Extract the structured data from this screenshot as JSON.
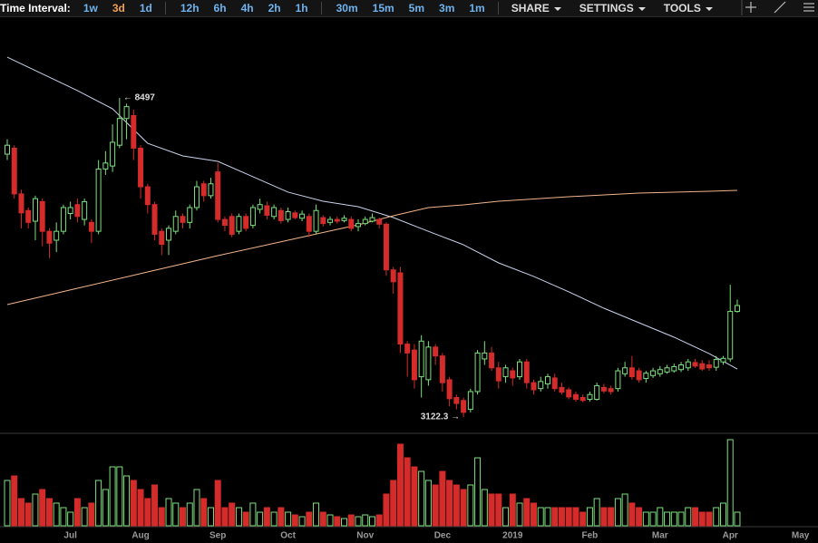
{
  "toolbar": {
    "label": "Time Interval:",
    "interval_groups": [
      [
        "1w",
        "3d",
        "1d"
      ],
      [
        "12h",
        "6h",
        "4h",
        "2h",
        "1h"
      ],
      [
        "30m",
        "15m",
        "5m",
        "3m",
        "1m"
      ]
    ],
    "active": [
      0,
      1
    ],
    "menus": [
      "SHARE",
      "SETTINGS",
      "TOOLS"
    ]
  },
  "chart_data": {
    "type": "candlestick",
    "up_color": "#7ee07e",
    "down_color": "#d42b2b",
    "ylim": [
      2847,
      9841
    ],
    "volume_ylim": [
      0,
      100
    ],
    "categories": [
      null,
      null,
      null,
      null,
      null,
      null,
      null,
      null,
      null,
      "Jul",
      null,
      null,
      null,
      null,
      null,
      null,
      null,
      null,
      null,
      "Aug",
      null,
      null,
      null,
      null,
      null,
      null,
      null,
      null,
      null,
      null,
      "Sep",
      null,
      null,
      null,
      null,
      null,
      null,
      null,
      null,
      null,
      "Oct",
      null,
      null,
      null,
      null,
      null,
      null,
      null,
      null,
      null,
      null,
      "Nov",
      null,
      null,
      null,
      null,
      null,
      null,
      null,
      null,
      null,
      null,
      "Dec",
      null,
      null,
      null,
      null,
      null,
      null,
      null,
      null,
      null,
      "2019",
      null,
      null,
      null,
      null,
      null,
      null,
      null,
      null,
      null,
      null,
      "Feb",
      null,
      null,
      null,
      null,
      null,
      null,
      null,
      null,
      null,
      "Mar",
      null,
      null,
      null,
      null,
      null,
      null,
      null,
      null,
      null,
      "Apr",
      null,
      null,
      null,
      null,
      null,
      null,
      null,
      null,
      null,
      "May"
    ],
    "candles": [
      [
        7550,
        7800,
        7450,
        7700
      ],
      [
        7650,
        7700,
        6800,
        6880
      ],
      [
        6880,
        6950,
        6300,
        6560
      ],
      [
        6600,
        6650,
        6300,
        6400
      ],
      [
        6420,
        6850,
        6100,
        6800
      ],
      [
        6750,
        6800,
        6000,
        6250
      ],
      [
        6250,
        6300,
        5800,
        6050
      ],
      [
        6100,
        6400,
        5900,
        6250
      ],
      [
        6250,
        6700,
        6200,
        6650
      ],
      [
        6550,
        6750,
        6450,
        6650
      ],
      [
        6700,
        6800,
        6400,
        6500
      ],
      [
        6450,
        6800,
        6350,
        6750
      ],
      [
        6400,
        6450,
        6050,
        6250
      ],
      [
        6250,
        7450,
        6200,
        7300
      ],
      [
        7300,
        7600,
        7200,
        7400
      ],
      [
        7350,
        8050,
        7250,
        7750
      ],
      [
        7700,
        8497,
        7650,
        8150
      ],
      [
        8150,
        8400,
        7800,
        8350
      ],
      [
        8200,
        8300,
        7450,
        7650
      ],
      [
        7650,
        7700,
        6800,
        7000
      ],
      [
        7000,
        7050,
        6550,
        6700
      ],
      [
        6700,
        6750,
        6100,
        6200
      ],
      [
        6250,
        6300,
        5850,
        6030
      ],
      [
        6100,
        6350,
        5850,
        6300
      ],
      [
        6250,
        6600,
        6200,
        6500
      ],
      [
        6500,
        6550,
        6300,
        6400
      ],
      [
        6400,
        6700,
        6300,
        6650
      ],
      [
        6650,
        7100,
        6600,
        7000
      ],
      [
        7050,
        7100,
        6750,
        6850
      ],
      [
        6850,
        7150,
        6800,
        7050
      ],
      [
        7250,
        7400,
        6400,
        6450
      ],
      [
        6450,
        6500,
        6250,
        6350
      ],
      [
        6500,
        6550,
        6150,
        6200
      ],
      [
        6250,
        6550,
        6200,
        6500
      ],
      [
        6500,
        6550,
        6250,
        6300
      ],
      [
        6350,
        6700,
        6300,
        6650
      ],
      [
        6620,
        6800,
        6550,
        6700
      ],
      [
        6680,
        6750,
        6450,
        6520
      ],
      [
        6500,
        6700,
        6450,
        6650
      ],
      [
        6600,
        6650,
        6380,
        6430
      ],
      [
        6450,
        6650,
        6400,
        6580
      ],
      [
        6560,
        6600,
        6450,
        6480
      ],
      [
        6470,
        6600,
        6420,
        6540
      ],
      [
        6500,
        6550,
        6150,
        6250
      ],
      [
        6250,
        6700,
        6200,
        6600
      ],
      [
        6480,
        6520,
        6330,
        6380
      ],
      [
        6400,
        6500,
        6350,
        6450
      ],
      [
        6450,
        6500,
        6380,
        6420
      ],
      [
        6430,
        6520,
        6400,
        6470
      ],
      [
        6450,
        6500,
        6250,
        6300
      ],
      [
        6330,
        6450,
        6250,
        6380
      ],
      [
        6380,
        6500,
        6350,
        6450
      ],
      [
        6420,
        6550,
        6400,
        6480
      ],
      [
        6450,
        6480,
        6300,
        6370
      ],
      [
        6370,
        6400,
        5500,
        5600
      ],
      [
        5600,
        5650,
        5200,
        5400
      ],
      [
        5550,
        5650,
        4200,
        4350
      ],
      [
        4350,
        4400,
        3800,
        4200
      ],
      [
        4250,
        4350,
        3600,
        3750
      ],
      [
        3800,
        4500,
        3450,
        4400
      ],
      [
        3750,
        4400,
        3650,
        4300
      ],
      [
        4300,
        4350,
        4000,
        4150
      ],
      [
        4150,
        4200,
        3550,
        3700
      ],
      [
        3750,
        3800,
        3300,
        3430
      ],
      [
        3450,
        3500,
        3250,
        3350
      ],
      [
        3400,
        3450,
        3122.3,
        3200
      ],
      [
        3250,
        3600,
        3200,
        3550
      ],
      [
        3550,
        4250,
        3500,
        4200
      ],
      [
        4100,
        4400,
        4000,
        4200
      ],
      [
        4200,
        4300,
        3900,
        3950
      ],
      [
        3950,
        4050,
        3600,
        3730
      ],
      [
        3800,
        4000,
        3700,
        3950
      ],
      [
        3900,
        3950,
        3650,
        3780
      ],
      [
        3800,
        4100,
        3750,
        4050
      ],
      [
        4050,
        4100,
        3600,
        3700
      ],
      [
        3700,
        3750,
        3500,
        3580
      ],
      [
        3600,
        3800,
        3550,
        3720
      ],
      [
        3680,
        3850,
        3600,
        3800
      ],
      [
        3780,
        3850,
        3550,
        3600
      ],
      [
        3620,
        3700,
        3500,
        3540
      ],
      [
        3580,
        3620,
        3420,
        3460
      ],
      [
        3500,
        3550,
        3380,
        3420
      ],
      [
        3450,
        3500,
        3370,
        3400
      ],
      [
        3420,
        3550,
        3380,
        3500
      ],
      [
        3420,
        3700,
        3400,
        3650
      ],
      [
        3620,
        3680,
        3520,
        3560
      ],
      [
        3600,
        3650,
        3500,
        3550
      ],
      [
        3600,
        3950,
        3550,
        3900
      ],
      [
        3850,
        4050,
        3800,
        3950
      ],
      [
        3950,
        4150,
        3750,
        3800
      ],
      [
        3900,
        3950,
        3700,
        3750
      ],
      [
        3770,
        3900,
        3700,
        3860
      ],
      [
        3820,
        3950,
        3780,
        3900
      ],
      [
        3850,
        3980,
        3800,
        3920
      ],
      [
        3880,
        4000,
        3850,
        3950
      ],
      [
        3900,
        4020,
        3870,
        3970
      ],
      [
        3920,
        4050,
        3880,
        4000
      ],
      [
        3950,
        4100,
        3900,
        4050
      ],
      [
        4040,
        4100,
        3950,
        3980
      ],
      [
        4020,
        4080,
        3900,
        3930
      ],
      [
        4000,
        4080,
        3900,
        3950
      ],
      [
        3960,
        4150,
        3900,
        4090
      ],
      [
        4050,
        4150,
        4000,
        4110
      ],
      [
        4100,
        5350,
        4050,
        4900
      ],
      [
        4900,
        5100,
        4880,
        5000
      ],
      null,
      null,
      null,
      null,
      null,
      null,
      null,
      null,
      null
    ],
    "volume": [
      50,
      55,
      30,
      25,
      35,
      40,
      30,
      25,
      20,
      15,
      30,
      20,
      25,
      50,
      40,
      65,
      65,
      55,
      50,
      40,
      30,
      45,
      20,
      30,
      25,
      20,
      25,
      40,
      30,
      20,
      50,
      20,
      25,
      20,
      15,
      25,
      15,
      20,
      15,
      20,
      15,
      12,
      10,
      15,
      25,
      15,
      12,
      10,
      8,
      12,
      10,
      12,
      10,
      12,
      35,
      50,
      90,
      75,
      65,
      60,
      50,
      45,
      60,
      50,
      45,
      40,
      45,
      75,
      40,
      35,
      35,
      20,
      35,
      25,
      30,
      25,
      20,
      20,
      20,
      20,
      20,
      20,
      15,
      20,
      30,
      20,
      20,
      30,
      35,
      25,
      20,
      15,
      15,
      20,
      15,
      15,
      15,
      20,
      20,
      15,
      15,
      20,
      25,
      95,
      15,
      null,
      null,
      null,
      null,
      null,
      null,
      null,
      null,
      null
    ],
    "lines": [
      {
        "color": "#c9d3ee",
        "x": [
          0,
          10,
          15,
          20,
          25,
          30,
          35,
          40,
          45,
          50,
          55,
          60,
          65,
          70,
          75,
          80,
          85,
          90,
          95,
          100,
          104
        ],
        "values": [
          9184,
          8620,
          8314,
          7733,
          7520,
          7428,
          7170,
          6910,
          6756,
          6665,
          6481,
          6250,
          6023,
          5718,
          5490,
          5230,
          4954,
          4710,
          4466,
          4190,
          3930
        ]
      },
      {
        "color": "#f2b48a",
        "x": [
          0,
          10,
          20,
          30,
          40,
          50,
          55,
          60,
          65,
          70,
          80,
          90,
          100,
          104
        ],
        "values": [
          5015,
          5290,
          5565,
          5840,
          6100,
          6360,
          6512,
          6650,
          6695,
          6756,
          6833,
          6894,
          6924,
          6940
        ]
      }
    ],
    "annotations": [
      {
        "text": "← 8497",
        "value": 8497
      },
      {
        "text": "3122.3 →",
        "value": 3122.3
      }
    ]
  }
}
